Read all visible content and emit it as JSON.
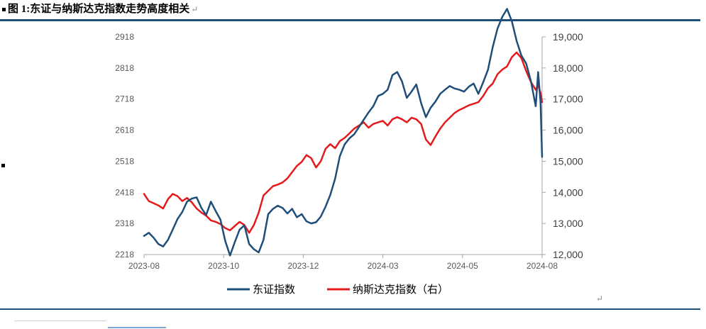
{
  "caption": {
    "text": "图 1:东证与纳斯达克指数走势高度相关",
    "return_mark": "↵"
  },
  "return_mark_bottom": "↵",
  "chart_data": {
    "type": "line",
    "x_tick_labels": [
      "2023-08",
      "2023-10",
      "2023-12",
      "2024-03",
      "2024-05",
      "2024-08"
    ],
    "x_range": [
      0,
      50
    ],
    "x_ticks": [
      0,
      10,
      20,
      30,
      40,
      50
    ],
    "left_axis": {
      "ylim": [
        2218,
        2918
      ],
      "ticks": [
        2218,
        2318,
        2418,
        2518,
        2618,
        2718,
        2818,
        2918
      ]
    },
    "right_axis": {
      "ylim": [
        12000,
        19000
      ],
      "ticks": [
        "12,000",
        "13,000",
        "14,000",
        "15,000",
        "16,000",
        "17,000",
        "18,000",
        "19,000"
      ],
      "tick_values": [
        12000,
        13000,
        14000,
        15000,
        16000,
        17000,
        18000,
        19000
      ]
    },
    "grid": false,
    "legend_position": "bottom",
    "colors": {
      "tse": "#1f4e79",
      "nasdaq": "#e41a1c"
    },
    "series": [
      {
        "name": "东证指数",
        "axis": "left",
        "color": "#1f4e79",
        "x": [
          0,
          0.6,
          1.2,
          1.8,
          2.4,
          3,
          3.6,
          4.2,
          4.8,
          5.4,
          6,
          6.6,
          7.2,
          7.8,
          8.4,
          9,
          9.6,
          10.2,
          10.8,
          11.4,
          12,
          12.6,
          13.2,
          13.8,
          14.4,
          15,
          15.6,
          16.2,
          16.8,
          17.4,
          18,
          18.6,
          19.2,
          19.8,
          20.4,
          21,
          21.6,
          22.2,
          22.8,
          23.4,
          24,
          24.6,
          25.2,
          25.8,
          26.4,
          27,
          27.6,
          28.2,
          28.8,
          29.4,
          30,
          30.6,
          31.2,
          31.8,
          32.4,
          33,
          33.6,
          34.2,
          34.8,
          35.4,
          36,
          36.6,
          37.2,
          37.8,
          38.4,
          39,
          39.6,
          40.2,
          40.8,
          41.4,
          42,
          42.6,
          43.2,
          43.8,
          44.4,
          45,
          45.6,
          46.2,
          46.8,
          47.4,
          48,
          48.6,
          49.2,
          49.5,
          49.8,
          50
        ],
        "values": [
          2278,
          2288,
          2272,
          2252,
          2244,
          2265,
          2298,
          2332,
          2355,
          2388,
          2398,
          2402,
          2368,
          2345,
          2388,
          2358,
          2330,
          2262,
          2215,
          2258,
          2298,
          2312,
          2252,
          2235,
          2225,
          2265,
          2348,
          2365,
          2375,
          2368,
          2350,
          2365,
          2338,
          2348,
          2325,
          2318,
          2322,
          2340,
          2372,
          2410,
          2462,
          2535,
          2572,
          2592,
          2605,
          2628,
          2652,
          2675,
          2695,
          2728,
          2735,
          2748,
          2795,
          2805,
          2775,
          2722,
          2742,
          2765,
          2705,
          2660,
          2690,
          2710,
          2735,
          2748,
          2760,
          2752,
          2748,
          2742,
          2758,
          2768,
          2735,
          2772,
          2812,
          2885,
          2945,
          2982,
          3008,
          2968,
          2905,
          2858,
          2832,
          2775,
          2695,
          2805,
          2708,
          2532
        ]
      },
      {
        "name": "纳斯达克指数（右）",
        "axis": "right",
        "color": "#e41a1c",
        "x": [
          0,
          0.6,
          1.2,
          1.8,
          2.4,
          3,
          3.6,
          4.2,
          4.8,
          5.4,
          6,
          6.6,
          7.2,
          7.8,
          8.4,
          9,
          9.6,
          10.2,
          10.8,
          11.4,
          12,
          12.6,
          13.2,
          13.8,
          14.4,
          15,
          15.6,
          16.2,
          16.8,
          17.4,
          18,
          18.6,
          19.2,
          19.8,
          20.4,
          21,
          21.6,
          22.2,
          22.8,
          23.4,
          24,
          24.6,
          25.2,
          25.8,
          26.4,
          27,
          27.6,
          28.2,
          28.8,
          29.4,
          30,
          30.6,
          31.2,
          31.8,
          32.4,
          33,
          33.6,
          34.2,
          34.8,
          35.4,
          36,
          36.6,
          37.2,
          37.8,
          38.4,
          39,
          39.6,
          40.2,
          40.8,
          41.4,
          42,
          42.6,
          43.2,
          43.8,
          44.4,
          45,
          45.6,
          46.2,
          46.8,
          47.4,
          48,
          48.6,
          49.2,
          49.5,
          49.8,
          50
        ],
        "values": [
          13950,
          13720,
          13650,
          13580,
          13480,
          13780,
          13950,
          13880,
          13720,
          13820,
          13680,
          13480,
          13350,
          13250,
          13100,
          13050,
          12980,
          12850,
          12780,
          12920,
          13050,
          12950,
          12700,
          12950,
          13350,
          13900,
          14050,
          14200,
          14250,
          14320,
          14450,
          14650,
          14850,
          14980,
          15200,
          15100,
          14800,
          15000,
          15400,
          15550,
          15420,
          15650,
          15750,
          15900,
          16050,
          16150,
          16250,
          16080,
          16200,
          16250,
          16300,
          16150,
          16350,
          16420,
          16350,
          16250,
          16400,
          16350,
          16200,
          15700,
          15520,
          15800,
          16050,
          16250,
          16400,
          16550,
          16650,
          16720,
          16800,
          16850,
          16900,
          17100,
          17350,
          17500,
          17800,
          17950,
          18050,
          18350,
          18500,
          18320,
          17900,
          17550,
          17300,
          17450,
          17200,
          16900
        ]
      }
    ]
  }
}
